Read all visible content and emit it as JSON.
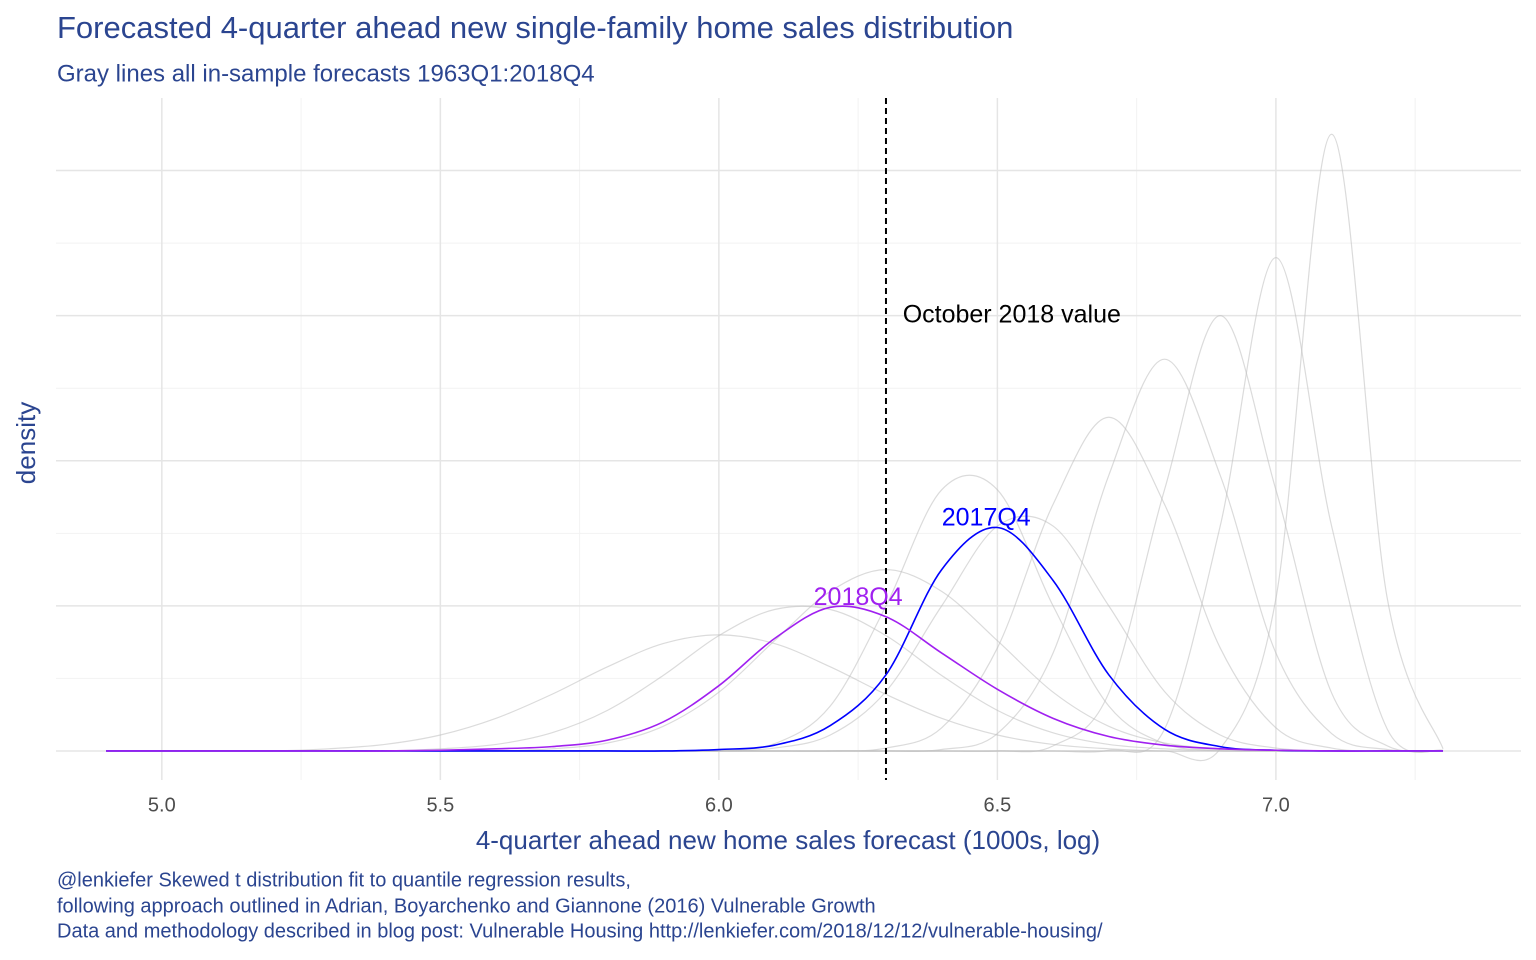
{
  "chart_data": {
    "type": "density",
    "title": "Forecasted 4-quarter ahead new single-family home sales distribution",
    "subtitle": "Gray lines all in-sample forecasts 1963Q1:2018Q4",
    "x_label": "4-quarter ahead new home sales forecast (1000s, log)",
    "y_label": "density",
    "caption": [
      "@lenkiefer Skewed t distribution fit to quantile regression results,",
      "following approach outlined in Adrian, Boyarchenko and Giannone (2016) Vulnerable Growth",
      "Data and methodology described in blog post: Vulnerable Housing http://lenkiefer.com/2018/12/12/vulnerable-housing/"
    ],
    "xlim": [
      4.81,
      7.44
    ],
    "ylim": [
      -0.4,
      9
    ],
    "xticks": [
      {
        "value": 5,
        "label": "5.0"
      },
      {
        "value": 5.5,
        "label": "5.5"
      },
      {
        "value": 6,
        "label": "6.0"
      },
      {
        "value": 6.5,
        "label": "6.5"
      },
      {
        "value": 7,
        "label": "7.0"
      }
    ],
    "xgrid_minor": [
      5.25,
      5.75,
      6.25,
      6.75,
      7.25
    ],
    "ygrid_major": [
      0,
      2,
      4,
      6,
      8
    ],
    "ygrid_minor": [
      1,
      3,
      5,
      7
    ],
    "grid": true,
    "x": [
      4.9,
      5.0,
      5.1,
      5.2,
      5.3,
      5.4,
      5.5,
      5.6,
      5.7,
      5.8,
      5.9,
      6.0,
      6.1,
      6.2,
      6.3,
      6.4,
      6.5,
      6.6,
      6.7,
      6.8,
      6.9,
      7.0,
      7.1,
      7.2,
      7.3
    ],
    "gray_lines": {
      "color": "#bdbdbd",
      "values": [
        [
          0,
          0,
          0,
          0,
          0,
          0,
          0,
          0,
          0,
          0,
          0,
          0,
          0,
          0,
          0,
          0,
          0,
          0,
          0,
          0,
          0.03,
          2.1,
          8.5,
          2.1,
          0.03
        ],
        [
          0,
          0,
          0,
          0,
          0,
          0,
          0,
          0,
          0,
          0,
          0,
          0,
          0,
          0,
          0,
          0,
          0,
          0,
          0.01,
          0.3,
          3.1,
          6.8,
          3.1,
          0.3,
          0.01
        ],
        [
          0,
          0,
          0,
          0,
          0,
          0,
          0,
          0,
          0,
          0,
          0,
          0,
          0,
          0,
          0,
          0,
          0,
          0.07,
          0.8,
          3.6,
          6,
          3.6,
          0.8,
          0.07,
          0
        ],
        [
          0,
          0,
          0,
          0,
          0,
          0,
          0,
          0,
          0,
          0,
          0,
          0,
          0,
          0,
          0,
          0.02,
          0.24,
          1.35,
          3.8,
          5.4,
          3.8,
          1.35,
          0.24,
          0.02,
          0
        ],
        [
          0,
          0,
          0,
          0,
          0,
          0,
          0,
          0,
          0,
          0,
          0,
          0,
          0,
          0,
          0.04,
          0.32,
          1.42,
          3.4,
          4.6,
          3.4,
          1.42,
          0.32,
          0.04,
          0,
          0
        ],
        [
          0,
          0,
          0,
          0,
          0,
          0,
          0,
          0,
          0,
          0,
          0,
          0,
          0.04,
          0.22,
          0.82,
          2,
          3.1,
          3.1,
          2,
          0.82,
          0.22,
          0.04,
          0,
          0,
          0
        ],
        [
          0,
          0,
          0,
          0,
          0,
          0,
          0,
          0,
          0.03,
          0.11,
          0.34,
          0.81,
          1.52,
          2.2,
          2.5,
          2.2,
          1.52,
          0.81,
          0.34,
          0.11,
          0.03,
          0,
          0,
          0,
          0
        ],
        [
          0,
          0,
          0,
          0,
          0.03,
          0.09,
          0.22,
          0.45,
          0.78,
          1.16,
          1.48,
          1.6,
          1.48,
          1.16,
          0.78,
          0.45,
          0.22,
          0.09,
          0.03,
          0,
          0,
          0,
          0,
          0,
          0
        ],
        [
          0,
          0,
          0,
          0,
          0,
          0,
          0.03,
          0.09,
          0.25,
          0.56,
          1.04,
          1.59,
          1.95,
          1.95,
          1.59,
          1.04,
          0.56,
          0.25,
          0.09,
          0.03,
          0,
          0,
          0,
          0,
          0
        ],
        [
          0,
          0,
          0,
          0,
          0,
          0,
          0,
          0,
          0,
          0,
          0,
          0.01,
          0.1,
          0.62,
          2,
          3.6,
          3.6,
          2,
          0.62,
          0.1,
          0.01,
          0,
          0,
          0,
          0
        ]
      ]
    },
    "series": [
      {
        "name": "2017Q4",
        "color": "#0000ff",
        "label_x": 6.48,
        "label_y": 3.2,
        "values": [
          0,
          0,
          0,
          0,
          0,
          0,
          0,
          0,
          0,
          0,
          0,
          0.02,
          0.08,
          0.35,
          1.05,
          2.5,
          3.08,
          2.35,
          1.05,
          0.3,
          0.06,
          0.01,
          0,
          0,
          0
        ]
      },
      {
        "name": "2018Q4",
        "color": "#a020f0",
        "label_x": 6.25,
        "label_y": 2.1,
        "values": [
          0,
          0,
          0,
          0,
          0,
          0,
          0.01,
          0.03,
          0.06,
          0.15,
          0.4,
          0.9,
          1.55,
          1.98,
          1.85,
          1.35,
          0.85,
          0.45,
          0.2,
          0.08,
          0.03,
          0.01,
          0,
          0,
          0
        ]
      }
    ],
    "vline": {
      "x": 6.3,
      "label": "October 2018 value",
      "label_x": 6.33,
      "label_y": 6.0
    }
  }
}
